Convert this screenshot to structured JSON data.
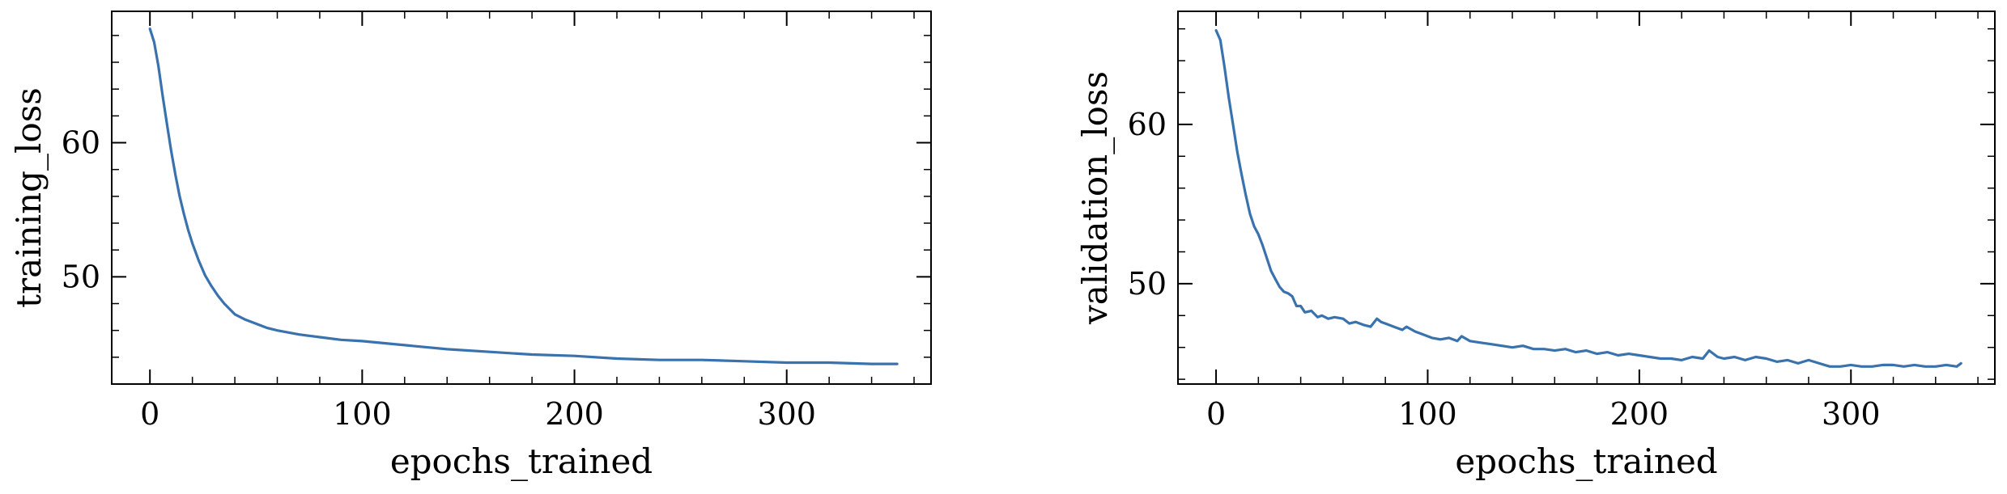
{
  "chart_data": [
    {
      "type": "line",
      "xlabel": "epochs_trained",
      "ylabel": "training_loss",
      "xlim": [
        -18,
        368
      ],
      "ylim": [
        42,
        69.8
      ],
      "xticks": [
        0,
        100,
        200,
        300
      ],
      "xtick_labels": [
        "0",
        "100",
        "200",
        "300"
      ],
      "yticks": [
        50,
        60
      ],
      "ytick_labels": [
        "50",
        "60"
      ],
      "x_minor_step": 20,
      "y_minor_step": 2,
      "grid": false,
      "series": [
        {
          "color": "#3a72ad",
          "x": [
            0,
            2,
            4,
            6,
            8,
            10,
            12,
            14,
            16,
            18,
            20,
            23,
            26,
            29,
            32,
            35,
            40,
            45,
            50,
            55,
            60,
            70,
            80,
            90,
            100,
            120,
            140,
            160,
            180,
            200,
            220,
            240,
            260,
            280,
            300,
            320,
            340,
            352
          ],
          "y": [
            68.5,
            67.5,
            65.7,
            63.5,
            61.4,
            59.4,
            57.6,
            56.0,
            54.7,
            53.5,
            52.5,
            51.2,
            50.1,
            49.3,
            48.6,
            48.0,
            47.2,
            46.8,
            46.5,
            46.2,
            46.0,
            45.7,
            45.5,
            45.3,
            45.2,
            44.9,
            44.6,
            44.4,
            44.2,
            44.1,
            43.9,
            43.8,
            43.8,
            43.7,
            43.6,
            43.6,
            43.5,
            43.5
          ]
        }
      ]
    },
    {
      "type": "line",
      "xlabel": "epochs_trained",
      "ylabel": "validation_loss",
      "xlim": [
        -18,
        368
      ],
      "ylim": [
        43.7,
        67.1
      ],
      "xticks": [
        0,
        100,
        200,
        300
      ],
      "xtick_labels": [
        "0",
        "100",
        "200",
        "300"
      ],
      "yticks": [
        50,
        60
      ],
      "ytick_labels": [
        "50",
        "60"
      ],
      "x_minor_step": 20,
      "y_minor_step": 2,
      "grid": false,
      "series": [
        {
          "color": "#3a72ad",
          "x": [
            0,
            2,
            4,
            6,
            8,
            10,
            12,
            14,
            16,
            18,
            20,
            22,
            24,
            26,
            28,
            30,
            32,
            34,
            36,
            38,
            40,
            42,
            45,
            48,
            50,
            53,
            56,
            60,
            63,
            66,
            70,
            73,
            76,
            78,
            80,
            84,
            88,
            90,
            94,
            98,
            102,
            106,
            110,
            114,
            116,
            120,
            125,
            130,
            135,
            140,
            145,
            150,
            155,
            160,
            165,
            170,
            175,
            180,
            185,
            190,
            195,
            200,
            205,
            210,
            215,
            220,
            225,
            230,
            233,
            237,
            240,
            245,
            250,
            255,
            260,
            265,
            270,
            275,
            280,
            285,
            290,
            295,
            300,
            305,
            310,
            315,
            320,
            325,
            330,
            335,
            340,
            345,
            350,
            352
          ],
          "y": [
            65.9,
            65.3,
            63.6,
            61.7,
            60.0,
            58.3,
            56.9,
            55.6,
            54.4,
            53.6,
            53.1,
            52.4,
            51.6,
            50.8,
            50.3,
            49.8,
            49.5,
            49.4,
            49.2,
            48.6,
            48.6,
            48.2,
            48.3,
            47.9,
            48.0,
            47.8,
            47.9,
            47.8,
            47.5,
            47.6,
            47.4,
            47.3,
            47.8,
            47.6,
            47.5,
            47.3,
            47.1,
            47.3,
            47.0,
            46.8,
            46.6,
            46.5,
            46.6,
            46.4,
            46.7,
            46.4,
            46.3,
            46.2,
            46.1,
            46.0,
            46.1,
            45.9,
            45.9,
            45.8,
            45.9,
            45.7,
            45.8,
            45.6,
            45.7,
            45.5,
            45.6,
            45.5,
            45.4,
            45.3,
            45.3,
            45.2,
            45.4,
            45.3,
            45.8,
            45.4,
            45.3,
            45.4,
            45.2,
            45.4,
            45.3,
            45.1,
            45.2,
            45.0,
            45.2,
            45.0,
            44.8,
            44.8,
            44.9,
            44.8,
            44.8,
            44.9,
            44.9,
            44.8,
            44.9,
            44.8,
            44.8,
            44.9,
            44.8,
            45.0
          ]
        }
      ]
    }
  ]
}
